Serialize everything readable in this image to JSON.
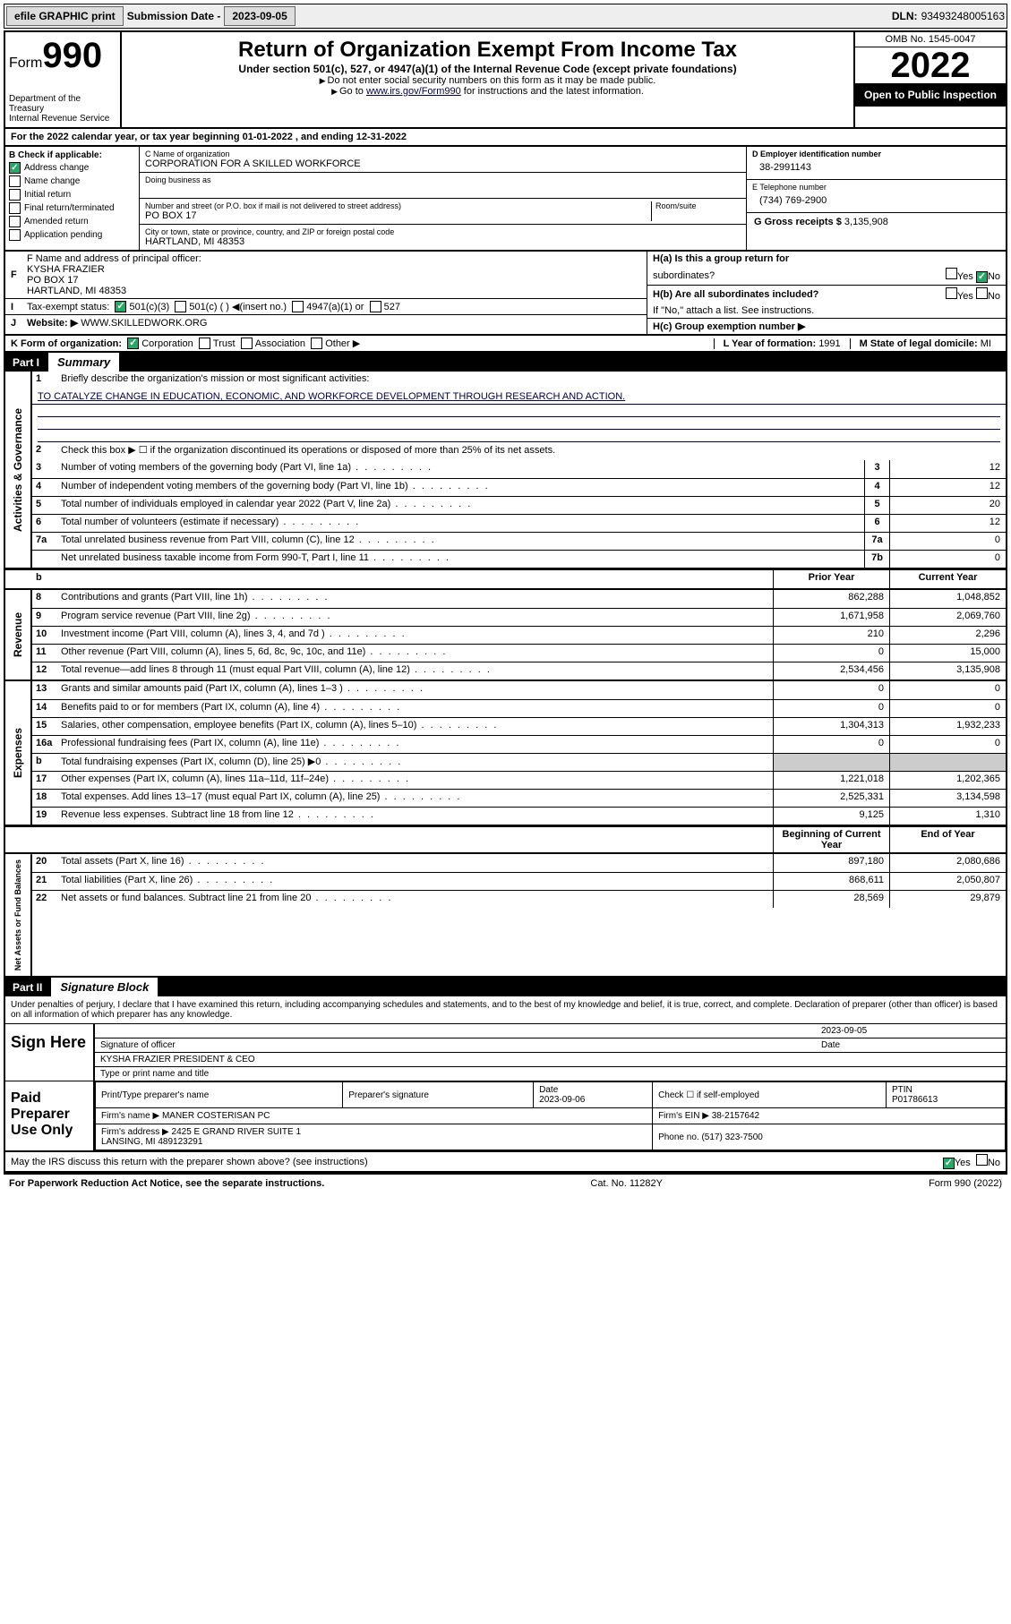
{
  "topbar": {
    "efile_btn": "efile GRAPHIC print",
    "sub_lbl": "Submission Date -",
    "sub_val": "2023-09-05",
    "dln_lbl": "DLN:",
    "dln_val": "93493248005163"
  },
  "header": {
    "form_prefix": "Form",
    "form_num": "990",
    "dept": "Department of the Treasury",
    "irs": "Internal Revenue Service",
    "title": "Return of Organization Exempt From Income Tax",
    "sub1": "Under section 501(c), 527, or 4947(a)(1) of the Internal Revenue Code (except private foundations)",
    "sub2_a": "Do not enter social security numbers on this form as it may be made public.",
    "sub2_b_pre": "Go to ",
    "sub2_b_link": "www.irs.gov/Form990",
    "sub2_b_post": " for instructions and the latest information.",
    "omb": "OMB No. 1545-0047",
    "year": "2022",
    "open": "Open to Public Inspection"
  },
  "tax_year_row": "For the 2022 calendar year, or tax year beginning 01-01-2022   , and ending 12-31-2022",
  "sectionB": {
    "b_lbl": "B Check if applicable:",
    "address_change": "Address change",
    "name_change": "Name change",
    "initial_return": "Initial return",
    "final_return": "Final return/terminated",
    "amended_return": "Amended return",
    "app_pending": "Application pending",
    "c_name_lbl": "C Name of organization",
    "c_name": "CORPORATION FOR A SKILLED WORKFORCE",
    "dba_lbl": "Doing business as",
    "addr_lbl": "Number and street (or P.O. box if mail is not delivered to street address)",
    "room_lbl": "Room/suite",
    "addr": "PO BOX 17",
    "city_lbl": "City or town, state or province, country, and ZIP or foreign postal code",
    "city": "HARTLAND, MI  48353",
    "d_lbl": "D Employer identification number",
    "d_val": "38-2991143",
    "e_lbl": "E Telephone number",
    "e_val": "(734) 769-2900",
    "g_lbl": "G Gross receipts $",
    "g_val": "3,135,908"
  },
  "rowF": {
    "f_lbl": "F Name and address of principal officer:",
    "f_name": "KYSHA FRAZIER",
    "f_addr1": "PO BOX 17",
    "f_addr2": "HARTLAND, MI  48353",
    "ha_lbl": "H(a)  Is this a group return for",
    "ha_sub": "subordinates?",
    "hb_lbl": "H(b)  Are all subordinates included?",
    "hb_note": "If \"No,\" attach a list. See instructions.",
    "hc_lbl": "H(c)  Group exemption number ▶",
    "yes": "Yes",
    "no": "No"
  },
  "rowI": {
    "i_lbl": "Tax-exempt status:",
    "i_501c3": "501(c)(3)",
    "i_501c": "501(c) (  ) ◀(insert no.)",
    "i_4947": "4947(a)(1) or",
    "i_527": "527"
  },
  "rowJ": {
    "lbl": "Website: ▶",
    "val": "WWW.SKILLEDWORK.ORG"
  },
  "rowK": {
    "lbl": "K Form of organization:",
    "corp": "Corporation",
    "trust": "Trust",
    "assoc": "Association",
    "other": "Other ▶",
    "l_lbl": "L Year of formation:",
    "l_val": "1991",
    "m_lbl": "M State of legal domicile:",
    "m_val": "MI"
  },
  "partI": {
    "tag": "Part I",
    "title": "Summary"
  },
  "summary": {
    "line1_lbl": "Briefly describe the organization's mission or most significant activities:",
    "line1_val": "TO CATALYZE CHANGE IN EDUCATION, ECONOMIC, AND WORKFORCE DEVELOPMENT THROUGH RESEARCH AND ACTION.",
    "line2": "Check this box ▶ ☐  if the organization discontinued its operations or disposed of more than 25% of its net assets.",
    "rows_ag": [
      {
        "n": "3",
        "d": "Number of voting members of the governing body (Part VI, line 1a)",
        "c": "3",
        "v": "12"
      },
      {
        "n": "4",
        "d": "Number of independent voting members of the governing body (Part VI, line 1b)",
        "c": "4",
        "v": "12"
      },
      {
        "n": "5",
        "d": "Total number of individuals employed in calendar year 2022 (Part V, line 2a)",
        "c": "5",
        "v": "20"
      },
      {
        "n": "6",
        "d": "Total number of volunteers (estimate if necessary)",
        "c": "6",
        "v": "12"
      },
      {
        "n": "7a",
        "d": "Total unrelated business revenue from Part VIII, column (C), line 12",
        "c": "7a",
        "v": "0"
      },
      {
        "n": "",
        "d": "Net unrelated business taxable income from Form 990-T, Part I, line 11",
        "c": "7b",
        "v": "0"
      }
    ],
    "col_prior": "Prior Year",
    "col_current": "Current Year",
    "col_beg": "Beginning of Current Year",
    "col_end": "End of Year",
    "revenue": [
      {
        "n": "8",
        "d": "Contributions and grants (Part VIII, line 1h)",
        "p": "862,288",
        "c": "1,048,852"
      },
      {
        "n": "9",
        "d": "Program service revenue (Part VIII, line 2g)",
        "p": "1,671,958",
        "c": "2,069,760"
      },
      {
        "n": "10",
        "d": "Investment income (Part VIII, column (A), lines 3, 4, and 7d )",
        "p": "210",
        "c": "2,296"
      },
      {
        "n": "11",
        "d": "Other revenue (Part VIII, column (A), lines 5, 6d, 8c, 9c, 10c, and 11e)",
        "p": "0",
        "c": "15,000"
      },
      {
        "n": "12",
        "d": "Total revenue—add lines 8 through 11 (must equal Part VIII, column (A), line 12)",
        "p": "2,534,456",
        "c": "3,135,908"
      }
    ],
    "expenses": [
      {
        "n": "13",
        "d": "Grants and similar amounts paid (Part IX, column (A), lines 1–3 )",
        "p": "0",
        "c": "0"
      },
      {
        "n": "14",
        "d": "Benefits paid to or for members (Part IX, column (A), line 4)",
        "p": "0",
        "c": "0"
      },
      {
        "n": "15",
        "d": "Salaries, other compensation, employee benefits (Part IX, column (A), lines 5–10)",
        "p": "1,304,313",
        "c": "1,932,233"
      },
      {
        "n": "16a",
        "d": "Professional fundraising fees (Part IX, column (A), line 11e)",
        "p": "0",
        "c": "0"
      },
      {
        "n": "b",
        "d": "Total fundraising expenses (Part IX, column (D), line 25) ▶0",
        "p": "",
        "c": "",
        "gray": true
      },
      {
        "n": "17",
        "d": "Other expenses (Part IX, column (A), lines 11a–11d, 11f–24e)",
        "p": "1,221,018",
        "c": "1,202,365"
      },
      {
        "n": "18",
        "d": "Total expenses. Add lines 13–17 (must equal Part IX, column (A), line 25)",
        "p": "2,525,331",
        "c": "3,134,598"
      },
      {
        "n": "19",
        "d": "Revenue less expenses. Subtract line 18 from line 12",
        "p": "9,125",
        "c": "1,310"
      }
    ],
    "netassets": [
      {
        "n": "20",
        "d": "Total assets (Part X, line 16)",
        "p": "897,180",
        "c": "2,080,686"
      },
      {
        "n": "21",
        "d": "Total liabilities (Part X, line 26)",
        "p": "868,611",
        "c": "2,050,807"
      },
      {
        "n": "22",
        "d": "Net assets or fund balances. Subtract line 21 from line 20",
        "p": "28,569",
        "c": "29,879"
      }
    ],
    "vlabels": {
      "ag": "Activities & Governance",
      "rev": "Revenue",
      "exp": "Expenses",
      "na": "Net Assets or Fund Balances"
    }
  },
  "partII": {
    "tag": "Part II",
    "title": "Signature Block"
  },
  "sig": {
    "penalty": "Under penalties of perjury, I declare that I have examined this return, including accompanying schedules and statements, and to the best of my knowledge and belief, it is true, correct, and complete. Declaration of preparer (other than officer) is based on all information of which preparer has any knowledge.",
    "sign_here": "Sign Here",
    "sig_of_officer": "Signature of officer",
    "date": "Date",
    "date_val": "2023-09-05",
    "officer_name": "KYSHA FRAZIER  PRESIDENT & CEO",
    "type_name": "Type or print name and title",
    "paid": "Paid Preparer Use Only",
    "prep_name_lbl": "Print/Type preparer's name",
    "prep_sig_lbl": "Preparer's signature",
    "prep_date_lbl": "Date",
    "prep_date_val": "2023-09-06",
    "check_if": "Check ☐ if self-employed",
    "ptin_lbl": "PTIN",
    "ptin_val": "P01786613",
    "firm_name_lbl": "Firm's name   ▶",
    "firm_name": "MANER COSTERISAN PC",
    "firm_ein_lbl": "Firm's EIN ▶",
    "firm_ein": "38-2157642",
    "firm_addr_lbl": "Firm's address ▶",
    "firm_addr1": "2425 E GRAND RIVER SUITE 1",
    "firm_addr2": "LANSING, MI  489123291",
    "phone_lbl": "Phone no.",
    "phone_val": "(517) 323-7500",
    "may_irs": "May the IRS discuss this return with the preparer shown above? (see instructions)",
    "yes": "Yes",
    "no": "No"
  },
  "footer": {
    "left": "For Paperwork Reduction Act Notice, see the separate instructions.",
    "mid": "Cat. No. 11282Y",
    "right": "Form 990 (2022)"
  },
  "colors": {
    "link": "#004080",
    "black": "#000000",
    "check_green": "#2a7a3a"
  }
}
